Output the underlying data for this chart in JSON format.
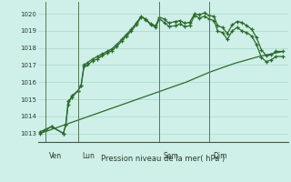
{
  "bg_color": "#cef0e8",
  "grid_color": "#aad8cc",
  "line_color": "#2d6a2d",
  "marker_color": "#2d6a2d",
  "title": "Pression niveau de la mer( hPa )",
  "ylim": [
    1012.5,
    1020.7
  ],
  "yticks": [
    1013,
    1014,
    1015,
    1016,
    1017,
    1018,
    1019,
    1020
  ],
  "day_labels": [
    "Ven",
    "Lun",
    "Sam",
    "Dim"
  ],
  "day_positions": [
    0.02,
    0.155,
    0.49,
    0.695
  ],
  "vline_color": "#557755",
  "xlabel_color": "#2d3a2d",
  "tick_color": "#2d3a2d",
  "s1_x": [
    0,
    0.023,
    0.046,
    0.095,
    0.105,
    0.115,
    0.13,
    0.155,
    0.168,
    0.18,
    0.195,
    0.215,
    0.235,
    0.255,
    0.275,
    0.295,
    0.315,
    0.335,
    0.355,
    0.375,
    0.395,
    0.415,
    0.435,
    0.455,
    0.475,
    0.49,
    0.51,
    0.53,
    0.555,
    0.575,
    0.595,
    0.615,
    0.635,
    0.655,
    0.675,
    0.695,
    0.715,
    0.73,
    0.75,
    0.77,
    0.79,
    0.81,
    0.83,
    0.85,
    0.87,
    0.89,
    0.91,
    0.93,
    0.95,
    0.97,
    1.0
  ],
  "s1_y": [
    1013.1,
    1013.25,
    1013.4,
    1013.0,
    1013.5,
    1014.7,
    1015.2,
    1015.5,
    1015.8,
    1016.9,
    1017.0,
    1017.25,
    1017.35,
    1017.55,
    1017.7,
    1017.85,
    1018.1,
    1018.4,
    1018.7,
    1019.0,
    1019.35,
    1019.8,
    1019.7,
    1019.4,
    1019.3,
    1019.8,
    1019.7,
    1019.45,
    1019.55,
    1019.6,
    1019.45,
    1019.5,
    1020.0,
    1019.95,
    1020.05,
    1019.9,
    1019.85,
    1019.3,
    1019.2,
    1018.85,
    1019.35,
    1019.55,
    1019.5,
    1019.3,
    1019.1,
    1018.6,
    1017.9,
    1017.55,
    1017.6,
    1017.8,
    1017.8
  ],
  "s2_x": [
    0,
    0.023,
    0.046,
    0.095,
    0.105,
    0.115,
    0.13,
    0.155,
    0.168,
    0.18,
    0.195,
    0.215,
    0.235,
    0.255,
    0.275,
    0.295,
    0.315,
    0.335,
    0.355,
    0.375,
    0.395,
    0.415,
    0.435,
    0.455,
    0.475,
    0.49,
    0.51,
    0.53,
    0.555,
    0.575,
    0.595,
    0.615,
    0.635,
    0.655,
    0.675,
    0.695,
    0.715,
    0.73,
    0.75,
    0.77,
    0.79,
    0.81,
    0.83,
    0.85,
    0.87,
    0.89,
    0.91,
    0.93,
    0.95,
    0.97,
    1.0
  ],
  "s2_y": [
    1013.0,
    1013.2,
    1013.4,
    1013.0,
    1013.5,
    1014.9,
    1015.1,
    1015.5,
    1015.8,
    1017.0,
    1017.15,
    1017.35,
    1017.5,
    1017.65,
    1017.8,
    1017.95,
    1018.2,
    1018.5,
    1018.8,
    1019.1,
    1019.45,
    1019.85,
    1019.65,
    1019.35,
    1019.2,
    1019.7,
    1019.5,
    1019.25,
    1019.3,
    1019.4,
    1019.25,
    1019.3,
    1019.9,
    1019.75,
    1019.85,
    1019.7,
    1019.6,
    1019.0,
    1018.9,
    1018.5,
    1019.0,
    1019.2,
    1019.0,
    1018.9,
    1018.7,
    1018.2,
    1017.45,
    1017.2,
    1017.3,
    1017.5,
    1017.5
  ],
  "s3_x": [
    0,
    0.1,
    0.2,
    0.3,
    0.4,
    0.5,
    0.6,
    0.7,
    0.8,
    0.9,
    1.0
  ],
  "s3_y": [
    1013.0,
    1013.5,
    1014.0,
    1014.5,
    1015.0,
    1015.5,
    1016.0,
    1016.6,
    1017.1,
    1017.5,
    1017.8
  ]
}
